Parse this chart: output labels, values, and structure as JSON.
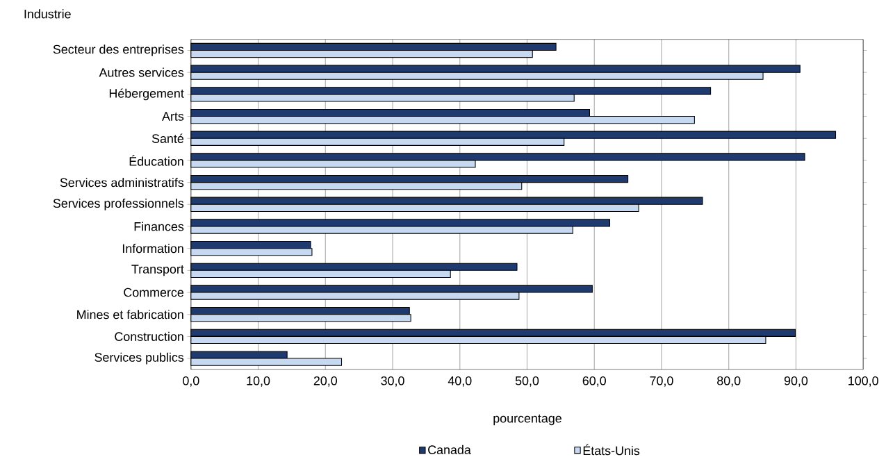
{
  "chart_data": {
    "type": "bar",
    "orientation": "horizontal",
    "ylabel": "Industrie",
    "xlabel": "pourcentage",
    "categories": [
      "Secteur des entreprises",
      "Autres services",
      "Hébergement",
      "Arts",
      "Santé",
      "Éducation",
      "Services administratifs",
      "Services professionnels",
      "Finances",
      "Information",
      "Transport",
      "Commerce",
      "Mines et fabrication",
      "Construction",
      "Services publics"
    ],
    "series": [
      {
        "name": "Canada",
        "color": "#1f3a6e",
        "values": [
          54.3,
          90.6,
          77.3,
          59.3,
          95.9,
          91.3,
          65.0,
          76.1,
          62.3,
          17.8,
          48.5,
          59.7,
          32.5,
          89.9,
          14.3
        ]
      },
      {
        "name": "États-Unis",
        "color": "#c6d9f1",
        "values": [
          50.8,
          85.1,
          57.0,
          74.9,
          55.5,
          42.3,
          49.2,
          66.6,
          56.8,
          18.0,
          38.6,
          48.8,
          32.7,
          85.5,
          22.4
        ]
      }
    ],
    "xlim": [
      0,
      100
    ],
    "xticks": [
      {
        "value": 0,
        "label": "0,0"
      },
      {
        "value": 10,
        "label": "10,0"
      },
      {
        "value": 20,
        "label": "20,0"
      },
      {
        "value": 30,
        "label": "30,0"
      },
      {
        "value": 40,
        "label": "40,0"
      },
      {
        "value": 50,
        "label": "50,0"
      },
      {
        "value": 60,
        "label": "60,0"
      },
      {
        "value": 70,
        "label": "70,0"
      },
      {
        "value": 80,
        "label": "80,0"
      },
      {
        "value": 90,
        "label": "90,0"
      },
      {
        "value": 100,
        "label": "100,0"
      }
    ],
    "grid": "x",
    "legend": "bottom"
  }
}
